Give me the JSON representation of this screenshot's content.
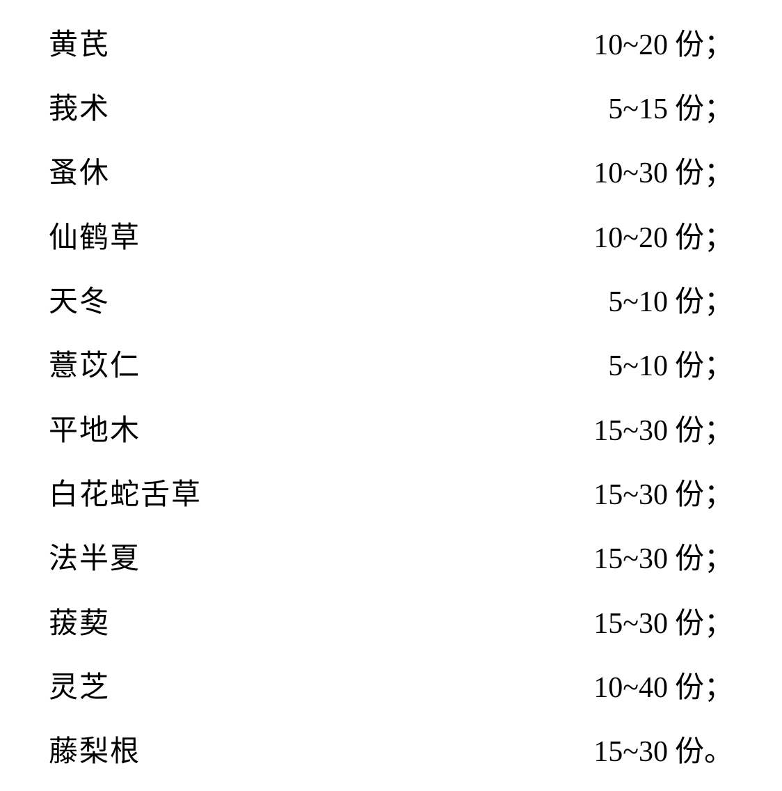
{
  "document": {
    "background_color": "#ffffff",
    "text_color": "#000000",
    "font_family": "SimSun",
    "font_size_pt": 32,
    "rows": [
      {
        "name": "黄芪",
        "value": "10~20",
        "unit": "份",
        "punct": "；"
      },
      {
        "name": "莪术",
        "value": "5~15",
        "unit": "份",
        "punct": "；"
      },
      {
        "name": "蚤休",
        "value": "10~30",
        "unit": "份",
        "punct": "；"
      },
      {
        "name": "仙鹤草",
        "value": "10~20",
        "unit": "份",
        "punct": "；"
      },
      {
        "name": "天冬",
        "value": "5~10",
        "unit": "份",
        "punct": "；"
      },
      {
        "name": "薏苡仁",
        "value": "5~10",
        "unit": "份",
        "punct": "；"
      },
      {
        "name": "平地木",
        "value": "15~30",
        "unit": "份",
        "punct": "；"
      },
      {
        "name": "白花蛇舌草",
        "value": "15~30",
        "unit": "份",
        "punct": "；"
      },
      {
        "name": "法半夏",
        "value": "15~30",
        "unit": "份",
        "punct": "；"
      },
      {
        "name": "菝葜",
        "value": "15~30",
        "unit": "份",
        "punct": "；"
      },
      {
        "name": "灵芝",
        "value": "10~40",
        "unit": "份",
        "punct": "；"
      },
      {
        "name": "藤梨根",
        "value": "15~30",
        "unit": "份",
        "punct": "。"
      }
    ]
  }
}
